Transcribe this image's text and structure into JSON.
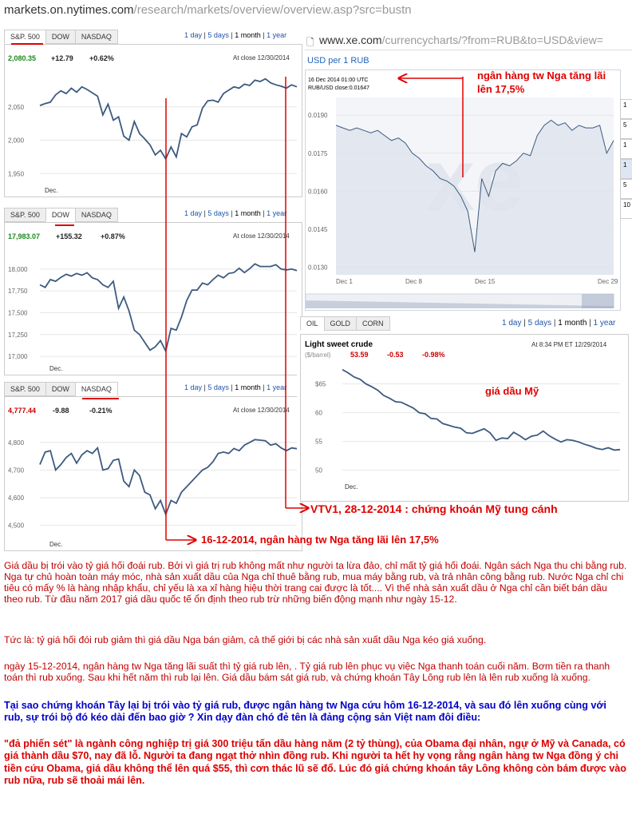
{
  "url_top": {
    "host": "markets.on.nytimes.com",
    "path": "/research/markets/overview/overview.asp?src=bustn"
  },
  "xe": {
    "host": "www.xe.com",
    "path": "/currencycharts/?from=RUB&to=USD&view=",
    "title": "USD per 1 RUB",
    "info1": "16 Dec 2014 01:00 UTC",
    "info2": "RUB/USD close:0.01647",
    "side": [
      "1",
      "5",
      "1",
      "1",
      "5",
      "10"
    ]
  },
  "range_links": {
    "d1": "1 day",
    "d5": "5 days",
    "m1": "1 month",
    "y1": "1 year"
  },
  "nyt_tabs": {
    "sp": "S&P. 500",
    "dow": "DOW",
    "nasdaq": "NASDAQ"
  },
  "oil_tabs": {
    "oil": "OIL",
    "gold": "GOLD",
    "corn": "CORN"
  },
  "sp500": {
    "last": "2,080.35",
    "change": "+12.79",
    "pct": "+0.62%",
    "stamp": "At close 12/30/2014",
    "xlabel": "Dec."
  },
  "dow": {
    "last": "17,983.07",
    "change": "+155.32",
    "pct": "+0.87%",
    "stamp": "At close 12/30/2014",
    "xlabel": "Dec."
  },
  "nasdaq": {
    "last": "4,777.44",
    "change": "-9.88",
    "pct": "-0.21%",
    "stamp": "At close 12/30/2014",
    "xlabel": "Dec."
  },
  "oil": {
    "title": "Light sweet crude",
    "unit": "($/barrel)",
    "last": "53.59",
    "change": "-0.53",
    "pct": "-0.98%",
    "stamp": "At 8:34 PM ET 12/29/2014",
    "xlabel": "Dec."
  },
  "annotations": {
    "xe_note": "ngân hàng tw Nga tăng lãi lên 17,5%",
    "oil_note": "giá dầu Mỹ",
    "vtv_note": "VTV1, 28-12-2014 : chứng khoán Mỹ tung cánh",
    "dec16_note": "16-12-2014, ngân hàng tw Nga tăng lãi lên 17,5%"
  },
  "body": {
    "p1": "Giá dầu bị trói vào tỷ giá hối đoái rub. Bởi vì giá trị rub không mất như người ta lừa đảo, chỉ mất tỷ giá hối đoái. Ngân sách Nga thu chi bằng rub. Nga tự chủ hoàn toàn máy móc, nhà sản xuất dầu của Nga chỉ thuê bằng rub, mua máy bằng rub, và trả nhân công bằng rub. Nước Nga chỉ chi tiêu có mấy % là hàng nhập khẩu, chỉ yếu là xa xỉ hàng hiệu thời trang cai được là tốt.... Vì thế nhà sản xuất dầu ở Nga chỉ cần biết bán dầu theo rub. Từ đầu năm 2017 giá dầu quốc tế ổn định theo rub trừ những biến động mạnh như ngày 15-12.",
    "p2": "Tức là: tỷ giá hối đói rub giảm thì giá dầu Nga bán giảm, cả thế giới bị các nhà sản xuất dầu Nga kéo giá xuống.",
    "p3": "ngày 15-12-2014, ngân hàng tw Nga tăng lãi suất thì tỷ giá rub lên, . Tỷ giá rub lên phục vụ việc Nga thanh toán cuối năm. Bơm tiền ra thanh toán thì rub xuống. Sau khi hết năm thì rub lại lên. Giá dầu bám sát giá rub, và chứng khoán Tây Lông rub lên là lên rub xuống là xuống.",
    "p4": "Tại sao chứng khoán Tây lại bị trói vào tỷ giá rub, được ngân hàng tw Nga cứu hôm 16-12-2014, và sau đó lên xuống cùng với rub, sự trói bộ đó kéo dài đến bao giờ ? Xin dạy đàn chó đẻ tên là đảng cộng sản Việt nam đôi điều:",
    "p5": "\"đả phiến sét\" là ngành công nghiệp trị giá 300 triệu tấn dầu hàng năm (2 tỷ thùng), của Obama đại nhân, ngự ở Mỹ và Canada, có giá thành dầu $70, nay đã lỗ. Người ta đang ngạt thở nhìn đồng rub.  Khi người ta hết hy vọng rằng ngân hàng tw Nga đồng ý chi tiền cứu Obama, giá dầu không thể lên quá $55, thì cơn thác lũ sẽ đổ. Lúc đó giá chứng khoán tây Lông không còn bám được vào rub nữa, rub sẽ thoải mái lên."
  },
  "colors": {
    "line": "#3c5a80",
    "up": "#1a8a1a",
    "down": "#cc0000",
    "annot": "#e00000"
  },
  "chart_data": [
    {
      "type": "line",
      "name_label": "S&P. 500",
      "yticks": [
        "2,050",
        "2,000",
        "1,950"
      ],
      "ylim": [
        1930,
        2100
      ],
      "values": [
        2052,
        2055,
        2057,
        2068,
        2074,
        2070,
        2078,
        2072,
        2080,
        2076,
        2071,
        2066,
        2038,
        2054,
        2030,
        2035,
        2006,
        2000,
        2028,
        2010,
        2002,
        1993,
        1978,
        1985,
        1972,
        1990,
        1975,
        2010,
        2005,
        2020,
        2023,
        2048,
        2059,
        2060,
        2057,
        2070,
        2075,
        2080,
        2078,
        2084,
        2082,
        2090,
        2088,
        2092,
        2086,
        2083,
        2081,
        2078,
        2083,
        2080
      ]
    },
    {
      "type": "line",
      "name_label": "DOW",
      "yticks": [
        "18,000",
        "17,750",
        "17,500",
        "17,250",
        "17,000"
      ],
      "ylim": [
        16900,
        18200
      ],
      "values": [
        17820,
        17790,
        17880,
        17860,
        17905,
        17940,
        17920,
        17950,
        17930,
        17958,
        17900,
        17880,
        17820,
        17790,
        17860,
        17550,
        17680,
        17520,
        17300,
        17250,
        17160,
        17070,
        17110,
        17180,
        17060,
        17320,
        17300,
        17450,
        17640,
        17760,
        17760,
        17840,
        17820,
        17880,
        17930,
        17900,
        17950,
        17960,
        18010,
        17960,
        18005,
        18060,
        18030,
        18030,
        18030,
        18050,
        18000,
        17990,
        18000,
        17983
      ]
    },
    {
      "type": "line",
      "name_label": "NASDAQ",
      "yticks": [
        "4,800",
        "4,700",
        "4,600",
        "4,500"
      ],
      "ylim": [
        4450,
        4860
      ],
      "values": [
        4720,
        4765,
        4770,
        4700,
        4720,
        4745,
        4760,
        4725,
        4755,
        4770,
        4760,
        4780,
        4700,
        4705,
        4735,
        4740,
        4660,
        4640,
        4700,
        4680,
        4620,
        4610,
        4560,
        4590,
        4540,
        4590,
        4580,
        4620,
        4640,
        4660,
        4680,
        4700,
        4710,
        4730,
        4760,
        4765,
        4760,
        4778,
        4770,
        4790,
        4800,
        4810,
        4808,
        4806,
        4790,
        4795,
        4780,
        4770,
        4780,
        4777
      ]
    },
    {
      "type": "line",
      "name_label": "USD per 1 RUB",
      "yticks": [
        "0.0190",
        "0.0175",
        "0.0160",
        "0.0145",
        "0.0130"
      ],
      "ylim": [
        0.0127,
        0.0197
      ],
      "xticks": [
        "Dec 1",
        "Dec 8",
        "Dec 15",
        "Dec 29"
      ],
      "values": [
        0.0186,
        0.0185,
        0.0184,
        0.0185,
        0.0184,
        0.0183,
        0.0184,
        0.0182,
        0.018,
        0.0181,
        0.0179,
        0.0175,
        0.0173,
        0.017,
        0.0168,
        0.0165,
        0.0164,
        0.0162,
        0.0158,
        0.0152,
        0.0136,
        0.0165,
        0.0158,
        0.0168,
        0.0171,
        0.017,
        0.0172,
        0.0175,
        0.0174,
        0.0182,
        0.0186,
        0.0188,
        0.0186,
        0.0187,
        0.0184,
        0.0186,
        0.0185,
        0.0185,
        0.0186,
        0.0175,
        0.018
      ]
    },
    {
      "type": "line",
      "name_label": "Light sweet crude",
      "yticks": [
        "$65",
        "60",
        "55",
        "50"
      ],
      "ylim": [
        48,
        68
      ],
      "values": [
        67.5,
        66.9,
        66.2,
        65.8,
        65.0,
        64.5,
        63.9,
        63.0,
        62.5,
        61.9,
        61.8,
        61.3,
        60.8,
        60.0,
        59.8,
        59.0,
        58.9,
        58.1,
        57.8,
        57.5,
        57.3,
        56.5,
        56.4,
        56.8,
        57.2,
        56.5,
        55.2,
        55.6,
        55.5,
        56.6,
        56.0,
        55.3,
        55.9,
        56.1,
        56.8,
        56.0,
        55.4,
        54.9,
        55.3,
        55.2,
        54.9,
        54.5,
        54.2,
        53.8,
        53.6,
        53.9,
        53.5,
        53.59
      ]
    }
  ]
}
